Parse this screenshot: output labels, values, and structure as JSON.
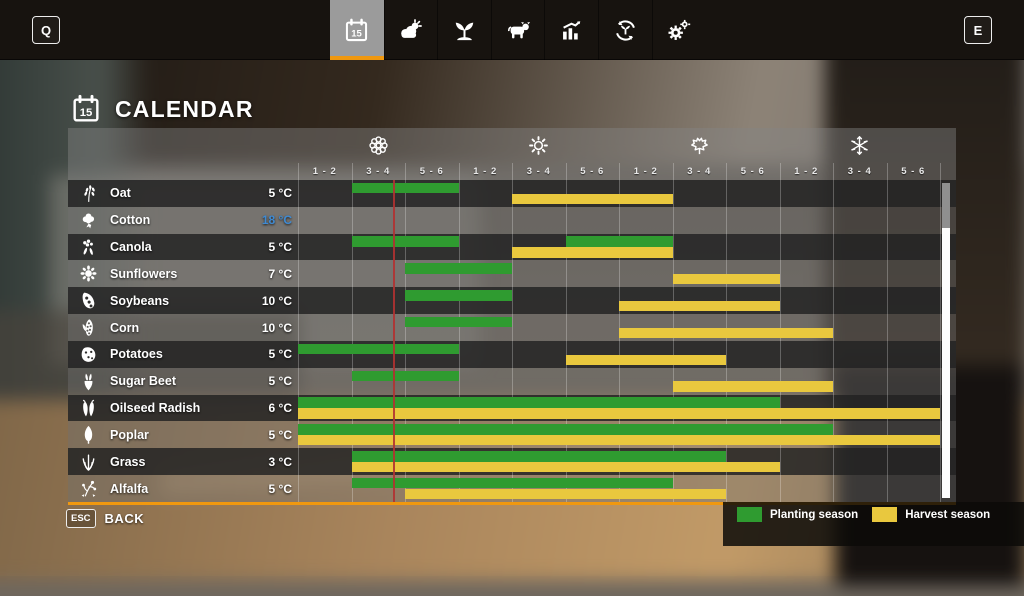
{
  "topbar": {
    "left_key": "Q",
    "right_key": "E",
    "calendar_day": "15",
    "tabs": [
      {
        "name": "calendar",
        "icon": "calendar-icon",
        "selected": true
      },
      {
        "name": "weather",
        "icon": "weather-icon",
        "selected": false
      },
      {
        "name": "crops",
        "icon": "seedling-icon",
        "selected": false
      },
      {
        "name": "animals",
        "icon": "cow-icon",
        "selected": false
      },
      {
        "name": "statistics",
        "icon": "bar-chart-icon",
        "selected": false
      },
      {
        "name": "crop-rotation",
        "icon": "crop-rotation-icon",
        "selected": false
      },
      {
        "name": "settings",
        "icon": "gears-icon",
        "selected": false
      }
    ]
  },
  "page": {
    "title": "CALENDAR",
    "title_icon": "calendar-icon"
  },
  "calendar": {
    "seasons": [
      {
        "name": "spring",
        "icon": "flower-icon"
      },
      {
        "name": "summer",
        "icon": "sun-icon"
      },
      {
        "name": "autumn",
        "icon": "maple-leaf-icon"
      },
      {
        "name": "winter",
        "icon": "snowflake-icon"
      }
    ],
    "period_labels": [
      "1 - 2",
      "3 - 4",
      "5 - 6",
      "1 - 2",
      "3 - 4",
      "5 - 6",
      "1 - 2",
      "3 - 4",
      "5 - 6",
      "1 - 2",
      "3 - 4",
      "5 - 6"
    ],
    "current_period_marker": {
      "column": 2,
      "fraction": 0.78
    },
    "crops": [
      {
        "name": "Oat",
        "icon": "oat-icon",
        "temp": "5 °C",
        "temp_highlight": false,
        "planting": [
          [
            2,
            3
          ]
        ],
        "harvest": [
          [
            5,
            7
          ]
        ]
      },
      {
        "name": "Cotton",
        "icon": "cotton-icon",
        "temp": "18 °C",
        "temp_highlight": true,
        "planting": [],
        "harvest": []
      },
      {
        "name": "Canola",
        "icon": "canola-icon",
        "temp": "5 °C",
        "temp_highlight": false,
        "planting": [
          [
            2,
            3
          ],
          [
            6,
            7
          ]
        ],
        "harvest": [
          [
            5,
            7
          ]
        ]
      },
      {
        "name": "Sunflowers",
        "icon": "sunflower-icon",
        "temp": "7 °C",
        "temp_highlight": false,
        "planting": [
          [
            3,
            4
          ]
        ],
        "harvest": [
          [
            8,
            9
          ]
        ]
      },
      {
        "name": "Soybeans",
        "icon": "soybean-icon",
        "temp": "10 °C",
        "temp_highlight": false,
        "planting": [
          [
            3,
            4
          ]
        ],
        "harvest": [
          [
            7,
            9
          ]
        ]
      },
      {
        "name": "Corn",
        "icon": "corn-icon",
        "temp": "10 °C",
        "temp_highlight": false,
        "planting": [
          [
            3,
            4
          ]
        ],
        "harvest": [
          [
            7,
            10
          ]
        ]
      },
      {
        "name": "Potatoes",
        "icon": "potato-icon",
        "temp": "5 °C",
        "temp_highlight": false,
        "planting": [
          [
            1,
            3
          ]
        ],
        "harvest": [
          [
            6,
            8
          ]
        ]
      },
      {
        "name": "Sugar Beet",
        "icon": "sugar-beet-icon",
        "temp": "5 °C",
        "temp_highlight": false,
        "planting": [
          [
            2,
            3
          ]
        ],
        "harvest": [
          [
            8,
            10
          ]
        ]
      },
      {
        "name": "Oilseed Radish",
        "icon": "oilseed-radish-icon",
        "temp": "6 °C",
        "temp_highlight": false,
        "planting": [
          [
            1,
            9
          ]
        ],
        "harvest": [
          [
            1,
            12
          ]
        ]
      },
      {
        "name": "Poplar",
        "icon": "poplar-icon",
        "temp": "5 °C",
        "temp_highlight": false,
        "planting": [
          [
            1,
            10
          ]
        ],
        "harvest": [
          [
            1,
            12
          ]
        ]
      },
      {
        "name": "Grass",
        "icon": "grass-icon",
        "temp": "3 °C",
        "temp_highlight": false,
        "planting": [
          [
            2,
            8
          ]
        ],
        "harvest": [
          [
            2,
            9
          ]
        ]
      },
      {
        "name": "Alfalfa",
        "icon": "alfalfa-icon",
        "temp": "5 °C",
        "temp_highlight": false,
        "planting": [
          [
            2,
            7
          ]
        ],
        "harvest": [
          [
            3,
            8
          ]
        ]
      }
    ]
  },
  "legend": [
    {
      "label": "Planting season",
      "color": "#2f9b30"
    },
    {
      "label": "Harvest season",
      "color": "#e9c83e"
    }
  ],
  "footer": {
    "key": "ESC",
    "label": "BACK"
  },
  "colors": {
    "accent_orange": "#f0980f",
    "planting_green": "#2f9b30",
    "harvest_yellow": "#e9c83e",
    "marker_red": "#b13232",
    "temp_highlight_blue": "#3f8ad2"
  }
}
